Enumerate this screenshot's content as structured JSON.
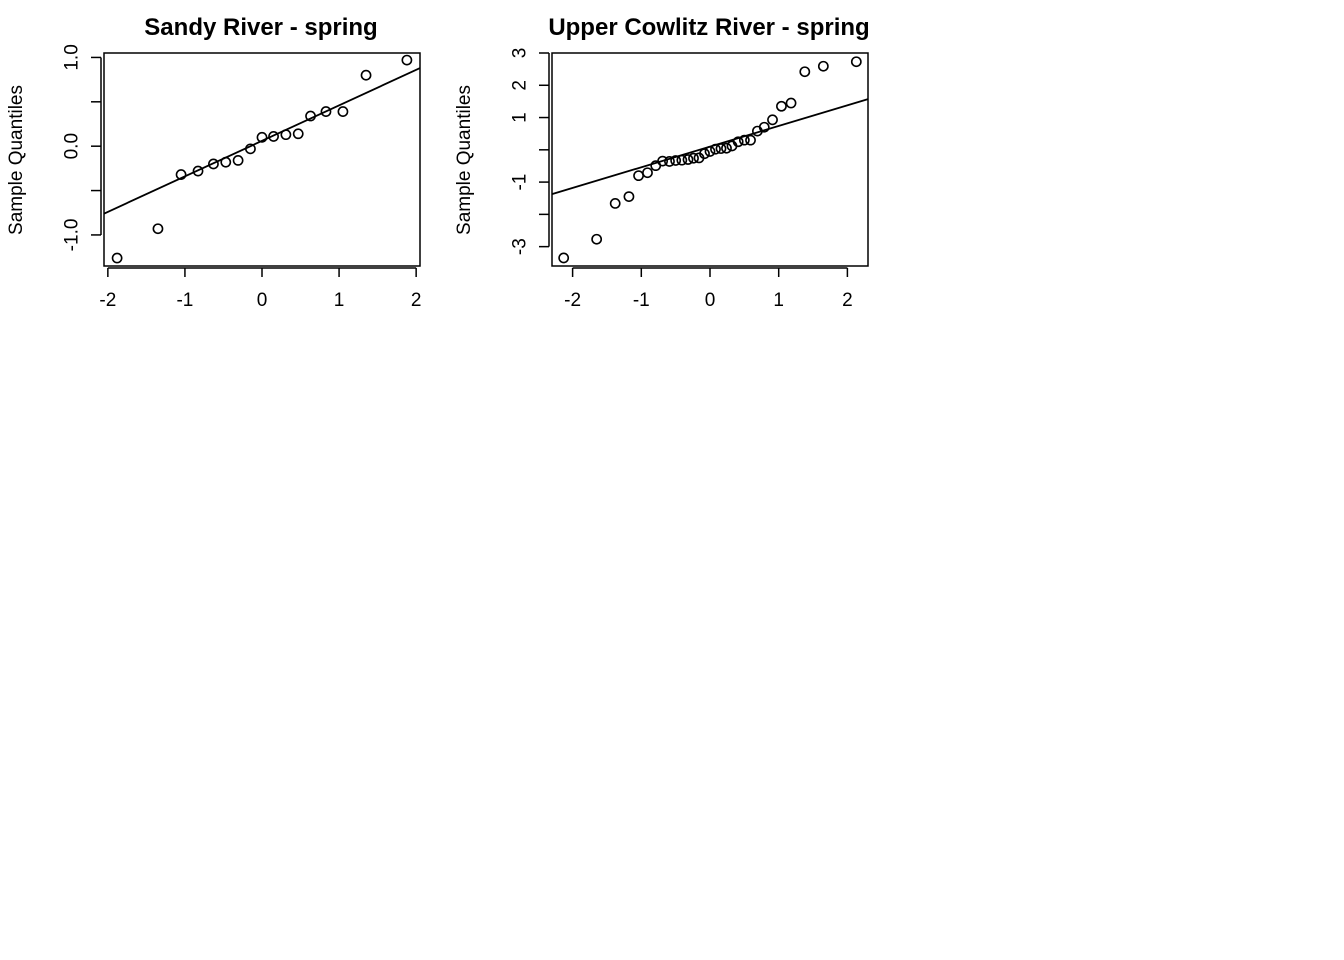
{
  "colors": {
    "background": "#ffffff",
    "ink": "#000000"
  },
  "chart_data": [
    {
      "type": "scatter",
      "subtype": "normal-qq-plot",
      "title": "Sandy River - spring",
      "xlabel": "",
      "ylabel": "Sample Quantiles",
      "xlim": [
        -2.05,
        2.05
      ],
      "ylim": [
        -1.35,
        1.05
      ],
      "xticks": [
        -2,
        -1,
        0,
        1,
        2
      ],
      "xtick_labels": [
        "-2",
        "-1",
        "0",
        "1",
        "2"
      ],
      "yticks": [
        -1.0,
        -0.5,
        0.0,
        0.5,
        1.0
      ],
      "ytick_labels": [
        "-1.0",
        "",
        "0.0",
        "",
        "1.0"
      ],
      "grid": false,
      "marker": "open-circle",
      "points": [
        {
          "x": -1.88,
          "y": -1.26
        },
        {
          "x": -1.35,
          "y": -0.93
        },
        {
          "x": -1.05,
          "y": -0.32
        },
        {
          "x": -0.83,
          "y": -0.28
        },
        {
          "x": -0.63,
          "y": -0.2
        },
        {
          "x": -0.47,
          "y": -0.18
        },
        {
          "x": -0.31,
          "y": -0.16
        },
        {
          "x": -0.15,
          "y": -0.03
        },
        {
          "x": 0.0,
          "y": 0.1
        },
        {
          "x": 0.15,
          "y": 0.11
        },
        {
          "x": 0.31,
          "y": 0.13
        },
        {
          "x": 0.47,
          "y": 0.14
        },
        {
          "x": 0.63,
          "y": 0.34
        },
        {
          "x": 0.83,
          "y": 0.39
        },
        {
          "x": 1.05,
          "y": 0.39
        },
        {
          "x": 1.35,
          "y": 0.8
        },
        {
          "x": 1.88,
          "y": 0.97
        }
      ],
      "reference_line": {
        "intercept": 0.06,
        "slope": 0.4
      }
    },
    {
      "type": "scatter",
      "subtype": "normal-qq-plot",
      "title": "Upper Cowlitz River - spring",
      "xlabel": "",
      "ylabel": "Sample Quantiles",
      "xlim": [
        -2.3,
        2.3
      ],
      "ylim": [
        -3.6,
        3.0
      ],
      "xticks": [
        -2,
        -1,
        0,
        1,
        2
      ],
      "xtick_labels": [
        "-2",
        "-1",
        "0",
        "1",
        "2"
      ],
      "yticks": [
        -3,
        -2,
        -1,
        0,
        1,
        2,
        3
      ],
      "ytick_labels": [
        "-3",
        "",
        "-1",
        "",
        "1",
        "2",
        "3"
      ],
      "grid": false,
      "marker": "open-circle",
      "points": [
        {
          "x": -2.13,
          "y": -3.35
        },
        {
          "x": -1.65,
          "y": -2.77
        },
        {
          "x": -1.38,
          "y": -1.66
        },
        {
          "x": -1.18,
          "y": -1.45
        },
        {
          "x": -1.04,
          "y": -0.8
        },
        {
          "x": -0.91,
          "y": -0.71
        },
        {
          "x": -0.79,
          "y": -0.49
        },
        {
          "x": -0.69,
          "y": -0.35
        },
        {
          "x": -0.59,
          "y": -0.36
        },
        {
          "x": -0.5,
          "y": -0.33
        },
        {
          "x": -0.41,
          "y": -0.32
        },
        {
          "x": -0.32,
          "y": -0.3
        },
        {
          "x": -0.24,
          "y": -0.26
        },
        {
          "x": -0.16,
          "y": -0.25
        },
        {
          "x": -0.08,
          "y": -0.12
        },
        {
          "x": 0.0,
          "y": -0.05
        },
        {
          "x": 0.08,
          "y": 0.02
        },
        {
          "x": 0.16,
          "y": 0.04
        },
        {
          "x": 0.24,
          "y": 0.05
        },
        {
          "x": 0.32,
          "y": 0.12
        },
        {
          "x": 0.41,
          "y": 0.25
        },
        {
          "x": 0.5,
          "y": 0.3
        },
        {
          "x": 0.59,
          "y": 0.3
        },
        {
          "x": 0.69,
          "y": 0.58
        },
        {
          "x": 0.79,
          "y": 0.7
        },
        {
          "x": 0.91,
          "y": 0.93
        },
        {
          "x": 1.04,
          "y": 1.35
        },
        {
          "x": 1.18,
          "y": 1.45
        },
        {
          "x": 1.38,
          "y": 2.42
        },
        {
          "x": 1.65,
          "y": 2.59
        },
        {
          "x": 2.13,
          "y": 2.73
        }
      ],
      "reference_line": {
        "intercept": 0.1,
        "slope": 0.64
      }
    }
  ]
}
